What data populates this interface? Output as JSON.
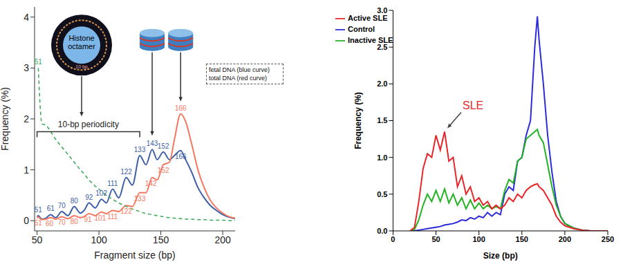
{
  "chart_data": [
    {
      "type": "line",
      "x_label": "Fragment size (bp)",
      "y_label": "Frequency (%)",
      "xlim": [
        48,
        210
      ],
      "xticks": [
        50,
        100,
        150,
        200
      ],
      "ylim": [
        -0.2,
        4.2
      ],
      "yticks": [
        0,
        1,
        2,
        3,
        4
      ],
      "grid": false,
      "legend": "top right",
      "x": [
        50,
        51,
        54,
        57,
        61,
        65,
        70,
        75,
        80,
        85,
        88,
        92,
        97,
        102,
        106,
        111,
        116,
        122,
        127,
        133,
        138,
        143,
        147,
        152,
        157,
        161,
        166,
        170,
        175,
        180,
        185,
        190,
        195,
        200,
        205,
        210
      ],
      "series": [
        {
          "name": "fetal DNA (blue curve)",
          "color": "#3c5ea8",
          "line_style": "solid",
          "values": [
            0.08,
            0.1,
            0.03,
            0.05,
            0.12,
            0.06,
            0.18,
            0.1,
            0.28,
            0.15,
            0.2,
            0.35,
            0.25,
            0.42,
            0.35,
            0.62,
            0.45,
            0.85,
            0.7,
            1.28,
            1.1,
            1.4,
            1.2,
            1.35,
            1.2,
            1.28,
            1.38,
            1.2,
            0.95,
            0.65,
            0.45,
            0.3,
            0.2,
            0.12,
            0.07,
            0.04
          ],
          "peak_labels": [
            51,
            61,
            70,
            80,
            92,
            102,
            111,
            122,
            133,
            143,
            152,
            166
          ]
        },
        {
          "name": "total DNA (red curve)",
          "color": "#f5775f",
          "line_style": "solid",
          "values": [
            0.05,
            0.07,
            0.02,
            0.03,
            0.06,
            0.03,
            0.08,
            0.04,
            0.1,
            0.06,
            0.08,
            0.14,
            0.1,
            0.17,
            0.14,
            0.2,
            0.18,
            0.3,
            0.28,
            0.55,
            0.55,
            0.85,
            0.8,
            1.1,
            1.15,
            1.6,
            2.1,
            1.95,
            1.5,
            1.0,
            0.65,
            0.4,
            0.25,
            0.15,
            0.08,
            0.05
          ],
          "peak_labels": [
            51,
            60,
            70,
            80,
            91,
            101,
            111,
            122,
            133,
            142,
            152,
            166
          ]
        },
        {
          "color": "#35a853",
          "line_style": "dashed",
          "values": [
            null,
            3.0,
            1.9,
            1.88,
            1.75,
            1.6,
            1.45,
            1.3,
            1.15,
            1.0,
            0.92,
            0.8,
            0.68,
            0.58,
            0.5,
            0.42,
            0.35,
            0.28,
            0.23,
            0.18,
            0.14,
            0.12,
            0.1,
            0.08,
            0.06,
            0.05,
            0.04,
            0.03,
            0.03,
            0.02,
            0.02,
            0.01,
            0.01,
            0.01,
            0,
            0
          ],
          "peak_labels": [
            51
          ]
        }
      ],
      "annotations": {
        "bracket": "10-bp periodicity",
        "nucleosome": "Histone octamer",
        "dna_turn": "10 bp"
      }
    },
    {
      "type": "line",
      "x_label": "Size (bp)",
      "y_label": "Frequency (%)",
      "xlim": [
        0,
        250
      ],
      "xticks": [
        0,
        50,
        100,
        150,
        200,
        250
      ],
      "ylim": [
        0,
        3.0
      ],
      "yticks": [
        {
          "value": 0,
          "label": "0.0"
        },
        {
          "value": 0.5,
          "label": "0.5"
        },
        {
          "value": 1.0,
          "label": "1.0"
        },
        {
          "value": 1.5,
          "label": "1.5"
        },
        {
          "value": 2.0,
          "label": "2.0"
        },
        {
          "value": 2.5,
          "label": "2.5"
        },
        {
          "value": 3.0,
          "label": "3.0"
        }
      ],
      "grid": false,
      "legend": "top left",
      "x": [
        20,
        25,
        30,
        35,
        40,
        45,
        50,
        55,
        60,
        65,
        70,
        75,
        80,
        85,
        90,
        95,
        100,
        105,
        110,
        115,
        120,
        125,
        130,
        135,
        140,
        145,
        150,
        155,
        160,
        165,
        168,
        170,
        175,
        180,
        185,
        190,
        195,
        200,
        210,
        220,
        230,
        240,
        250
      ],
      "series": [
        {
          "name": "Control",
          "color": "#2b2bd9",
          "values": [
            0,
            0,
            0.01,
            0.02,
            0.03,
            0.04,
            0.05,
            0.06,
            0.08,
            0.09,
            0.1,
            0.12,
            0.15,
            0.14,
            0.18,
            0.16,
            0.2,
            0.18,
            0.25,
            0.2,
            0.25,
            0.22,
            0.5,
            0.6,
            0.55,
            0.95,
            1.0,
            1.3,
            1.5,
            2.5,
            2.92,
            2.6,
            2.0,
            1.3,
            0.8,
            0.4,
            0.2,
            0.1,
            0.04,
            0.01,
            0,
            0,
            0
          ]
        },
        {
          "name": "Inactive SLE",
          "color": "#22b322",
          "values": [
            0,
            0.02,
            0.15,
            0.35,
            0.5,
            0.4,
            0.55,
            0.4,
            0.57,
            0.38,
            0.5,
            0.35,
            0.45,
            0.3,
            0.42,
            0.3,
            0.38,
            0.3,
            0.35,
            0.3,
            0.33,
            0.3,
            0.55,
            0.7,
            0.65,
            0.95,
            1.0,
            1.25,
            1.3,
            1.35,
            1.38,
            1.3,
            1.2,
            0.9,
            0.6,
            0.35,
            0.2,
            0.1,
            0.04,
            0.01,
            0,
            0,
            0
          ]
        },
        {
          "name": "Active SLE",
          "color": "#e8262a",
          "values": [
            0,
            0.05,
            0.4,
            0.85,
            1.05,
            1.0,
            1.3,
            1.1,
            1.35,
            0.95,
            1.0,
            0.6,
            0.75,
            0.5,
            0.6,
            0.4,
            0.45,
            0.35,
            0.4,
            0.3,
            0.35,
            0.3,
            0.35,
            0.45,
            0.4,
            0.5,
            0.45,
            0.55,
            0.6,
            0.63,
            0.64,
            0.6,
            0.55,
            0.45,
            0.35,
            0.2,
            0.12,
            0.07,
            0.03,
            0.01,
            0,
            0,
            0
          ]
        }
      ],
      "annotations": [
        {
          "text": "SLE",
          "series": "Active SLE"
        }
      ]
    }
  ]
}
